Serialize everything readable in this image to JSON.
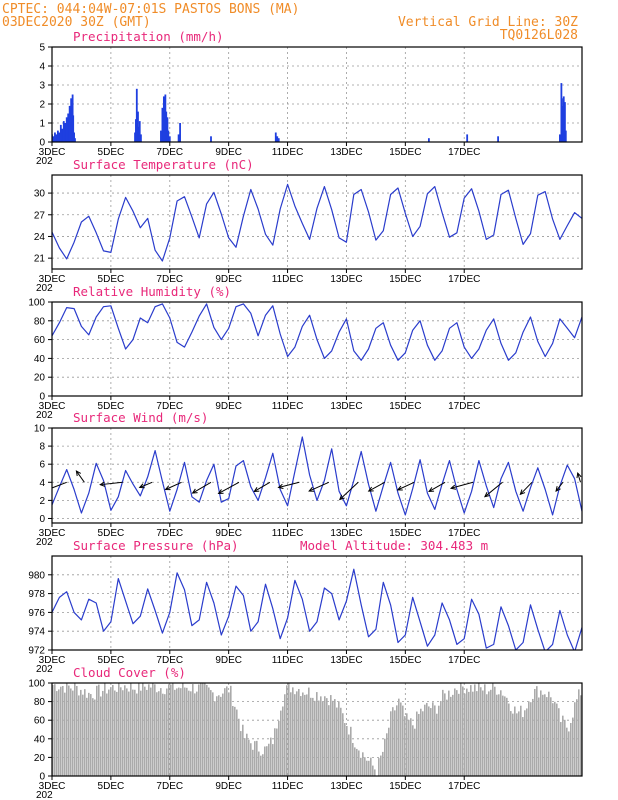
{
  "header": {
    "line1": "CPTEC:   044:04W-07:01S  PASTOS BONS (MA)",
    "line2": "03DEC2020 30Z (GMT)",
    "grid_note": "Vertical Grid Line: 30Z",
    "run_id": "TQ0126L028"
  },
  "colors": {
    "header": "#f08c28",
    "title": "#e8287a",
    "series": "#2a3ccc",
    "bars": "#1f3fe0",
    "cloud": "#aaaaaa",
    "grid": "#999999"
  },
  "x_axis_labels": [
    "3DEC",
    "5DEC",
    "7DEC",
    "9DEC",
    "11DEC",
    "13DEC",
    "15DEC",
    "17DEC"
  ],
  "year_fragment": "202",
  "chart_data": [
    {
      "id": "precip",
      "type": "bar",
      "title": "Precipitation (mm/h)",
      "ylim": [
        0,
        5
      ],
      "yticks": [
        "0",
        "1",
        "2",
        "3",
        "4",
        "5"
      ],
      "x_day": [
        0.0,
        0.05,
        0.1,
        0.15,
        0.2,
        0.25,
        0.3,
        0.35,
        0.4,
        0.45,
        0.5,
        0.55,
        0.6,
        0.65,
        0.7,
        0.72,
        0.75,
        0.78,
        2.82,
        2.85,
        2.88,
        2.92,
        2.95,
        2.98,
        3.02,
        3.7,
        3.75,
        3.8,
        3.85,
        3.88,
        3.92,
        3.95,
        4.0,
        4.3,
        4.35,
        5.4,
        7.6,
        7.65,
        7.7,
        12.8,
        14.1,
        15.15,
        17.25,
        17.3,
        17.32,
        17.35,
        17.38,
        17.42,
        17.45
      ],
      "values": [
        0.4,
        0.3,
        0.5,
        0.4,
        0.6,
        0.5,
        0.9,
        0.7,
        1.1,
        1.0,
        1.3,
        1.5,
        1.9,
        2.3,
        2.5,
        1.4,
        0.5,
        0.2,
        0.5,
        1.2,
        2.8,
        1.6,
        0.8,
        1.1,
        0.4,
        0.6,
        1.8,
        2.4,
        2.5,
        1.6,
        1.3,
        0.6,
        0.3,
        0.4,
        1.0,
        0.3,
        0.5,
        0.3,
        0.2,
        0.2,
        0.4,
        0.3,
        0.4,
        3.1,
        2.3,
        1.9,
        2.4,
        2.1,
        0.6
      ]
    },
    {
      "id": "temp",
      "type": "line",
      "title": "Surface Temperature (nC)",
      "ylim": [
        19.5,
        32.5
      ],
      "yticks": [
        "21",
        "24",
        "27",
        "30"
      ],
      "ytick_values": [
        21,
        24,
        27,
        30
      ],
      "days": [
        0.0,
        0.25,
        0.5,
        0.75,
        1.0,
        1.25,
        1.5,
        1.75,
        2.0,
        2.25,
        2.5,
        2.75,
        3.0,
        3.25,
        3.5,
        3.75,
        4.0,
        4.25,
        4.5,
        4.75,
        5.0,
        5.25,
        5.5,
        5.75,
        6.0,
        6.25,
        6.5,
        6.75,
        7.0,
        7.25,
        7.5,
        7.75,
        8.0,
        8.25,
        8.5,
        8.75,
        9.0,
        9.25,
        9.5,
        9.75,
        10.0,
        10.25,
        10.5,
        10.75,
        11.0,
        11.25,
        11.5,
        11.75,
        12.0,
        12.25,
        12.5,
        12.75,
        13.0,
        13.25,
        13.5,
        13.75,
        14.0,
        14.25,
        14.5,
        14.75,
        15.0,
        15.25,
        15.5,
        15.75,
        16.0,
        16.25,
        16.5,
        16.75,
        17.0,
        17.25,
        17.5,
        17.75,
        18.0
      ],
      "values": [
        24.6,
        22.4,
        20.9,
        23.2,
        26.0,
        26.8,
        24.5,
        22.0,
        21.8,
        26.4,
        29.4,
        27.5,
        25.2,
        26.5,
        22.1,
        20.6,
        23.8,
        28.9,
        29.5,
        26.7,
        23.8,
        28.5,
        30.1,
        27.1,
        23.8,
        22.5,
        26.8,
        30.5,
        27.8,
        24.3,
        22.8,
        27.8,
        31.2,
        28.2,
        25.8,
        23.6,
        27.9,
        30.9,
        27.7,
        23.8,
        23.2,
        29.8,
        30.5,
        27.4,
        23.5,
        24.8,
        29.8,
        30.7,
        27.2,
        24.0,
        25.4,
        29.9,
        30.9,
        27.3,
        23.9,
        24.5,
        29.3,
        30.6,
        27.5,
        23.6,
        24.2,
        29.8,
        30.4,
        26.5,
        22.9,
        24.4,
        29.7,
        30.2,
        26.4,
        23.6,
        25.5,
        27.3,
        26.5
      ]
    },
    {
      "id": "rh",
      "type": "line",
      "title": "Relative Humidity (%)",
      "ylim": [
        0,
        100
      ],
      "yticks": [
        "0",
        "20",
        "40",
        "60",
        "80",
        "100"
      ],
      "days": [
        0.0,
        0.25,
        0.5,
        0.75,
        1.0,
        1.25,
        1.5,
        1.75,
        2.0,
        2.25,
        2.5,
        2.75,
        3.0,
        3.25,
        3.5,
        3.75,
        4.0,
        4.25,
        4.5,
        4.75,
        5.0,
        5.25,
        5.5,
        5.75,
        6.0,
        6.25,
        6.5,
        6.75,
        7.0,
        7.25,
        7.5,
        7.75,
        8.0,
        8.25,
        8.5,
        8.75,
        9.0,
        9.25,
        9.5,
        9.75,
        10.0,
        10.25,
        10.5,
        10.75,
        11.0,
        11.25,
        11.5,
        11.75,
        12.0,
        12.25,
        12.5,
        12.75,
        13.0,
        13.25,
        13.5,
        13.75,
        14.0,
        14.25,
        14.5,
        14.75,
        15.0,
        15.25,
        15.5,
        15.75,
        16.0,
        16.25,
        16.5,
        16.75,
        17.0,
        17.25,
        17.5,
        17.75,
        18.0
      ],
      "values": [
        64,
        78,
        94,
        93,
        74,
        65,
        84,
        95,
        96,
        72,
        50,
        60,
        83,
        78,
        95,
        98,
        83,
        57,
        52,
        68,
        85,
        98,
        73,
        60,
        72,
        95,
        98,
        88,
        64,
        86,
        96,
        66,
        42,
        52,
        74,
        86,
        60,
        40,
        48,
        68,
        82,
        48,
        38,
        50,
        72,
        78,
        54,
        38,
        46,
        70,
        80,
        54,
        38,
        48,
        72,
        78,
        52,
        40,
        50,
        70,
        82,
        56,
        38,
        46,
        68,
        84,
        58,
        42,
        56,
        82,
        72,
        62,
        84
      ]
    },
    {
      "id": "wind",
      "type": "line",
      "title": "Surface Wind (m/s)",
      "ylim": [
        -0.5,
        10
      ],
      "yticks": [
        "0",
        "2",
        "4",
        "6",
        "8",
        "10"
      ],
      "ytick_values": [
        0,
        2,
        4,
        6,
        8,
        10
      ],
      "days": [
        0.0,
        0.25,
        0.5,
        0.75,
        1.0,
        1.25,
        1.5,
        1.75,
        2.0,
        2.25,
        2.5,
        2.75,
        3.0,
        3.25,
        3.5,
        3.75,
        4.0,
        4.25,
        4.5,
        4.75,
        5.0,
        5.25,
        5.5,
        5.75,
        6.0,
        6.25,
        6.5,
        6.75,
        7.0,
        7.25,
        7.5,
        7.75,
        8.0,
        8.25,
        8.5,
        8.75,
        9.0,
        9.25,
        9.5,
        9.75,
        10.0,
        10.25,
        10.5,
        10.75,
        11.0,
        11.25,
        11.5,
        11.75,
        12.0,
        12.25,
        12.5,
        12.75,
        13.0,
        13.25,
        13.5,
        13.75,
        14.0,
        14.25,
        14.5,
        14.75,
        15.0,
        15.25,
        15.5,
        15.75,
        16.0,
        16.25,
        16.5,
        16.75,
        17.0,
        17.25,
        17.5,
        17.75,
        18.0
      ],
      "values": [
        1.5,
        3.5,
        5.4,
        3.2,
        0.6,
        2.8,
        6.1,
        4.2,
        0.9,
        2.4,
        5.3,
        3.8,
        2.5,
        4.6,
        7.5,
        4.1,
        0.8,
        3.2,
        6.2,
        2.4,
        1.8,
        4.2,
        6.0,
        1.8,
        2.2,
        5.8,
        6.4,
        3.5,
        2.0,
        4.5,
        7.2,
        3.2,
        1.4,
        5.2,
        9.0,
        4.8,
        2.0,
        4.2,
        7.7,
        3.0,
        1.4,
        4.2,
        7.4,
        3.8,
        0.8,
        3.6,
        6.2,
        2.8,
        0.4,
        3.3,
        6.5,
        2.8,
        1.0,
        3.8,
        6.4,
        3.2,
        0.6,
        3.0,
        6.4,
        3.6,
        1.2,
        4.4,
        6.2,
        3.0,
        0.8,
        3.4,
        5.6,
        3.2,
        0.4,
        3.6,
        5.9,
        4.4,
        0.8
      ],
      "arrows": [
        {
          "day": 0.5,
          "u": -5.2,
          "v": -2.0
        },
        {
          "day": 1.1,
          "u": -2.0,
          "v": 2.8
        },
        {
          "day": 2.4,
          "u": -5.6,
          "v": -0.6
        },
        {
          "day": 3.4,
          "u": -3.1,
          "v": -1.3
        },
        {
          "day": 4.4,
          "u": -4.0,
          "v": -1.8
        },
        {
          "day": 5.4,
          "u": -4.6,
          "v": -2.7
        },
        {
          "day": 6.35,
          "u": -5.1,
          "v": -2.8
        },
        {
          "day": 7.4,
          "u": -3.9,
          "v": -2.3
        },
        {
          "day": 8.4,
          "u": -5.2,
          "v": -1.3
        },
        {
          "day": 9.4,
          "u": -4.9,
          "v": -2.2
        },
        {
          "day": 10.4,
          "u": -4.6,
          "v": -4.3
        },
        {
          "day": 11.3,
          "u": -4.0,
          "v": -2.2
        },
        {
          "day": 12.3,
          "u": -4.1,
          "v": -1.9
        },
        {
          "day": 13.35,
          "u": -4.0,
          "v": -2.3
        },
        {
          "day": 14.3,
          "u": -5.5,
          "v": -1.5
        },
        {
          "day": 15.3,
          "u": -4.4,
          "v": -3.6
        },
        {
          "day": 16.3,
          "u": -2.9,
          "v": -3.0
        },
        {
          "day": 17.35,
          "u": -1.7,
          "v": -2.2
        },
        {
          "day": 17.95,
          "u": -0.7,
          "v": 2.3
        }
      ]
    },
    {
      "id": "pressure",
      "type": "line",
      "title": "Surface Pressure (hPa)",
      "annotation": "Model Altitude: 304.483 m",
      "ylim": [
        972,
        982
      ],
      "yticks": [
        "972",
        "974",
        "976",
        "978",
        "980"
      ],
      "ytick_values": [
        972,
        974,
        976,
        978,
        980
      ],
      "days": [
        0.0,
        0.25,
        0.5,
        0.75,
        1.0,
        1.25,
        1.5,
        1.75,
        2.0,
        2.25,
        2.5,
        2.75,
        3.0,
        3.25,
        3.5,
        3.75,
        4.0,
        4.25,
        4.5,
        4.75,
        5.0,
        5.25,
        5.5,
        5.75,
        6.0,
        6.25,
        6.5,
        6.75,
        7.0,
        7.25,
        7.5,
        7.75,
        8.0,
        8.25,
        8.5,
        8.75,
        9.0,
        9.25,
        9.5,
        9.75,
        10.0,
        10.25,
        10.5,
        10.75,
        11.0,
        11.25,
        11.5,
        11.75,
        12.0,
        12.25,
        12.5,
        12.75,
        13.0,
        13.25,
        13.5,
        13.75,
        14.0,
        14.25,
        14.5,
        14.75,
        15.0,
        15.25,
        15.5,
        15.75,
        16.0,
        16.25,
        16.5,
        16.75,
        17.0,
        17.25,
        17.5,
        17.75,
        18.0
      ],
      "values": [
        976.0,
        977.6,
        978.2,
        976.0,
        975.2,
        977.4,
        977.0,
        974.0,
        975.0,
        979.6,
        977.2,
        974.8,
        975.6,
        978.5,
        976.2,
        973.8,
        976.0,
        980.2,
        978.4,
        974.6,
        975.2,
        979.2,
        977.0,
        973.6,
        975.6,
        978.8,
        977.8,
        974.0,
        975.0,
        979.0,
        976.4,
        973.2,
        975.4,
        979.4,
        977.4,
        974.0,
        975.0,
        978.6,
        978.0,
        975.2,
        977.2,
        980.6,
        976.8,
        973.4,
        974.2,
        979.2,
        976.8,
        972.8,
        973.6,
        977.6,
        975.0,
        972.4,
        973.6,
        977.0,
        975.2,
        972.6,
        973.2,
        977.4,
        975.8,
        972.2,
        972.6,
        976.6,
        974.6,
        972.0,
        972.8,
        976.8,
        974.2,
        971.8,
        972.6,
        976.2,
        973.6,
        971.8,
        974.4
      ]
    },
    {
      "id": "cloud",
      "type": "area",
      "title": "Cloud Cover (%)",
      "ylim": [
        0,
        100
      ],
      "yticks": [
        "0",
        "20",
        "40",
        "60",
        "80",
        "100"
      ],
      "days": [
        0.0,
        0.25,
        0.5,
        0.75,
        1.0,
        1.25,
        1.5,
        1.75,
        2.0,
        2.25,
        2.5,
        2.75,
        3.0,
        3.25,
        3.5,
        3.75,
        4.0,
        4.25,
        4.5,
        4.75,
        5.0,
        5.25,
        5.5,
        5.75,
        6.0,
        6.25,
        6.5,
        6.75,
        7.0,
        7.25,
        7.5,
        7.75,
        8.0,
        8.25,
        8.5,
        8.75,
        9.0,
        9.25,
        9.5,
        9.75,
        10.0,
        10.25,
        10.5,
        10.75,
        11.0,
        11.25,
        11.5,
        11.75,
        12.0,
        12.25,
        12.5,
        12.75,
        13.0,
        13.25,
        13.5,
        13.75,
        14.0,
        14.25,
        14.5,
        14.75,
        15.0,
        15.25,
        15.5,
        15.75,
        16.0,
        16.25,
        16.5,
        16.75,
        17.0,
        17.25,
        17.5,
        17.75,
        18.0
      ],
      "values": [
        98,
        97,
        96,
        95,
        92,
        88,
        90,
        93,
        95,
        96,
        97,
        95,
        96,
        97,
        96,
        95,
        96,
        95,
        96,
        95,
        94,
        92,
        88,
        90,
        94,
        70,
        42,
        35,
        30,
        28,
        40,
        78,
        96,
        95,
        92,
        90,
        88,
        86,
        82,
        72,
        55,
        38,
        25,
        15,
        6,
        30,
        65,
        80,
        60,
        55,
        70,
        75,
        72,
        85,
        90,
        96,
        96,
        95,
        94,
        93,
        95,
        92,
        80,
        68,
        70,
        88,
        92,
        90,
        82,
        60,
        52,
        78,
        95
      ]
    }
  ]
}
